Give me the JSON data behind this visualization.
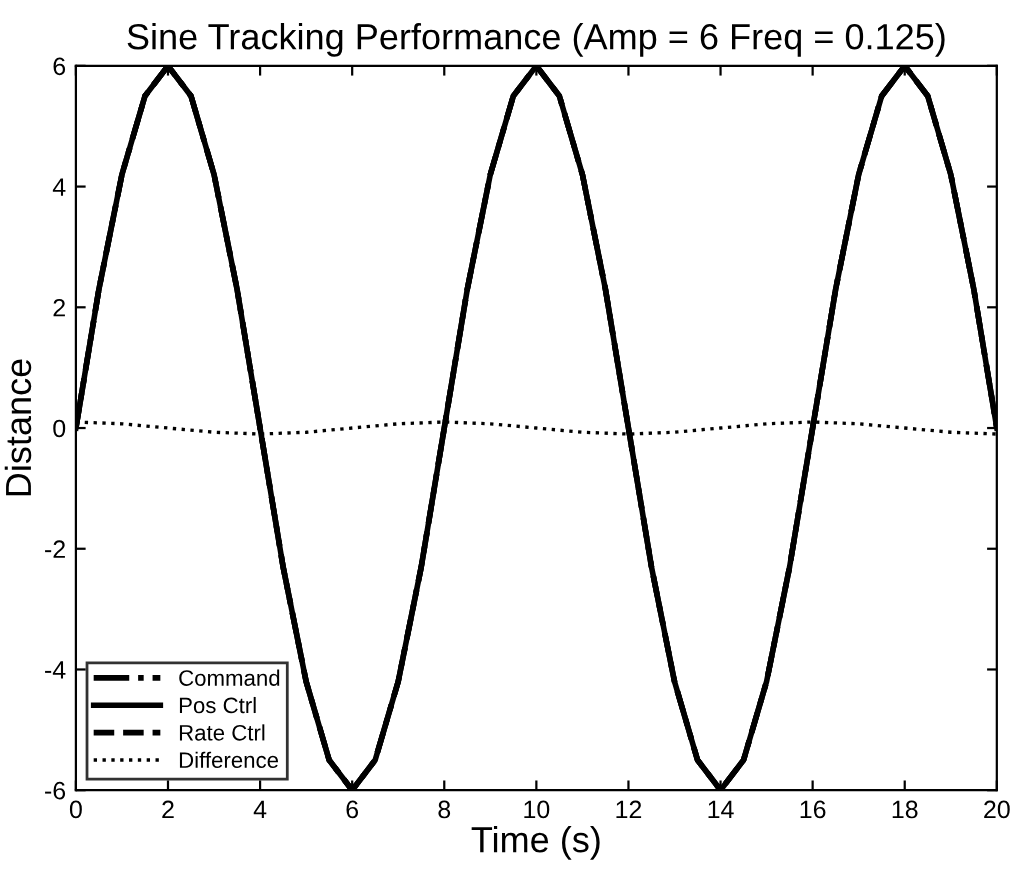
{
  "chart_data": {
    "type": "line",
    "title": "Sine Tracking Performance (Amp = 6 Freq = 0.125)",
    "xlabel": "Time (s)",
    "ylabel": "Distance",
    "xlim": [
      0,
      20
    ],
    "ylim": [
      -6,
      6
    ],
    "xticks": [
      0,
      2,
      4,
      6,
      8,
      10,
      12,
      14,
      16,
      18,
      20
    ],
    "yticks": [
      -6,
      -4,
      -2,
      0,
      2,
      4,
      6
    ],
    "legend": "bottom left",
    "grid": false,
    "series": [
      {
        "name": "Command",
        "color": "#000000",
        "line_style": "dashdot",
        "x": [
          0,
          0.5,
          1,
          1.5,
          2,
          2.5,
          3,
          3.5,
          4,
          4.5,
          5,
          5.5,
          6,
          6.5,
          7,
          7.5,
          8,
          8.5,
          9,
          9.5,
          10,
          10.5,
          11,
          11.5,
          12,
          12.5,
          13,
          13.5,
          14,
          14.5,
          15,
          15.5,
          16,
          16.5,
          17,
          17.5,
          18,
          18.5,
          19,
          19.5,
          20
        ],
        "values": [
          0,
          2.3,
          4.2,
          5.5,
          6,
          5.5,
          4.2,
          2.3,
          0,
          -2.3,
          -4.2,
          -5.5,
          -6,
          -5.5,
          -4.2,
          -2.3,
          0,
          2.3,
          4.2,
          5.5,
          6,
          5.5,
          4.2,
          2.3,
          0,
          -2.3,
          -4.2,
          -5.5,
          -6,
          -5.5,
          -4.2,
          -2.3,
          0,
          2.3,
          4.2,
          5.5,
          6,
          5.5,
          4.2,
          2.3,
          0
        ]
      },
      {
        "name": "Pos Ctrl",
        "color": "#000000",
        "line_style": "solid",
        "x": [
          0,
          0.5,
          1,
          1.5,
          2,
          2.5,
          3,
          3.5,
          4,
          4.5,
          5,
          5.5,
          6,
          6.5,
          7,
          7.5,
          8,
          8.5,
          9,
          9.5,
          10,
          10.5,
          11,
          11.5,
          12,
          12.5,
          13,
          13.5,
          14,
          14.5,
          15,
          15.5,
          16,
          16.5,
          17,
          17.5,
          18,
          18.5,
          19,
          19.5,
          20
        ],
        "values": [
          0,
          2.3,
          4.2,
          5.5,
          6,
          5.5,
          4.2,
          2.3,
          0,
          -2.3,
          -4.2,
          -5.5,
          -6,
          -5.5,
          -4.2,
          -2.3,
          0,
          2.3,
          4.2,
          5.5,
          6,
          5.5,
          4.2,
          2.3,
          0,
          -2.3,
          -4.2,
          -5.5,
          -6,
          -5.5,
          -4.2,
          -2.3,
          0,
          2.3,
          4.2,
          5.5,
          6,
          5.5,
          4.2,
          2.3,
          0
        ]
      },
      {
        "name": "Rate Ctrl",
        "color": "#000000",
        "line_style": "dashed",
        "x": [
          0,
          0.5,
          1,
          1.5,
          2,
          2.5,
          3,
          3.5,
          4,
          4.5,
          5,
          5.5,
          6,
          6.5,
          7,
          7.5,
          8,
          8.5,
          9,
          9.5,
          10,
          10.5,
          11,
          11.5,
          12,
          12.5,
          13,
          13.5,
          14,
          14.5,
          15,
          15.5,
          16,
          16.5,
          17,
          17.5,
          18,
          18.5,
          19,
          19.5,
          20
        ],
        "values": [
          0,
          2.3,
          4.2,
          5.5,
          6,
          5.5,
          4.2,
          2.3,
          0,
          -2.3,
          -4.2,
          -5.5,
          -6,
          -5.5,
          -4.2,
          -2.3,
          0,
          2.3,
          4.2,
          5.5,
          6,
          5.5,
          4.2,
          2.3,
          0,
          -2.3,
          -4.2,
          -5.5,
          -6,
          -5.5,
          -4.2,
          -2.3,
          0,
          2.3,
          4.2,
          5.5,
          6,
          5.5,
          4.2,
          2.3,
          0
        ]
      },
      {
        "name": "Difference",
        "color": "#000000",
        "line_style": "dotted",
        "x": [
          0,
          1,
          2,
          3,
          4,
          5,
          6,
          7,
          8,
          9,
          10,
          11,
          12,
          13,
          14,
          15,
          16,
          17,
          18,
          19,
          20
        ],
        "values": [
          0.1,
          0.07,
          0,
          -0.07,
          -0.1,
          -0.07,
          0,
          0.07,
          0.1,
          0.07,
          0,
          -0.07,
          -0.1,
          -0.07,
          0,
          0.07,
          0.1,
          0.07,
          0,
          -0.07,
          -0.1
        ]
      }
    ]
  }
}
